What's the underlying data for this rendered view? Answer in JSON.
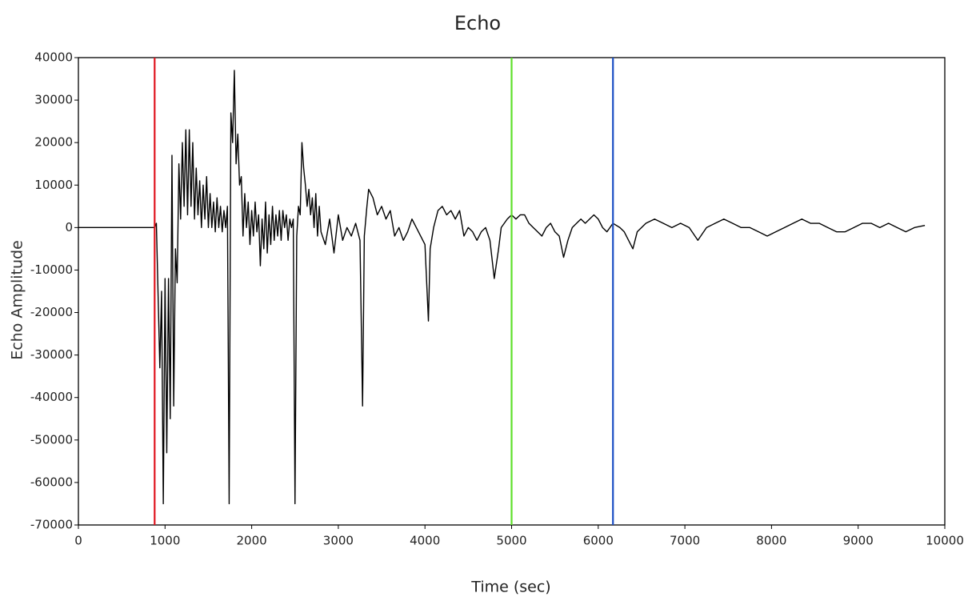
{
  "chart_data": {
    "type": "line",
    "title": "Echo",
    "x_label": "Time (sec)",
    "y_label": "Echo Amplitude",
    "color": "#000000",
    "x": [
      0,
      880,
      900,
      940,
      960,
      980,
      1000,
      1020,
      1040,
      1060,
      1080,
      1100,
      1120,
      1140,
      1160,
      1180,
      1200,
      1220,
      1240,
      1260,
      1280,
      1300,
      1320,
      1340,
      1360,
      1380,
      1400,
      1420,
      1440,
      1460,
      1480,
      1500,
      1520,
      1540,
      1560,
      1580,
      1600,
      1620,
      1640,
      1660,
      1680,
      1700,
      1720,
      1740,
      1760,
      1780,
      1800,
      1820,
      1840,
      1860,
      1880,
      1900,
      1920,
      1940,
      1960,
      1980,
      2000,
      2020,
      2040,
      2060,
      2080,
      2100,
      2120,
      2140,
      2160,
      2180,
      2200,
      2220,
      2240,
      2260,
      2280,
      2300,
      2320,
      2340,
      2360,
      2380,
      2400,
      2420,
      2440,
      2460,
      2480,
      2500,
      2520,
      2540,
      2560,
      2580,
      2600,
      2620,
      2640,
      2660,
      2680,
      2700,
      2720,
      2740,
      2760,
      2780,
      2800,
      2850,
      2900,
      2950,
      3000,
      3050,
      3100,
      3150,
      3200,
      3250,
      3280,
      3300,
      3330,
      3350,
      3400,
      3450,
      3500,
      3550,
      3600,
      3650,
      3700,
      3750,
      3800,
      3850,
      3900,
      3950,
      4000,
      4040,
      4060,
      4100,
      4150,
      4200,
      4250,
      4300,
      4350,
      4400,
      4450,
      4500,
      4550,
      4600,
      4650,
      4700,
      4750,
      4800,
      4850,
      4880,
      4950,
      5000,
      5050,
      5100,
      5150,
      5200,
      5250,
      5300,
      5350,
      5400,
      5450,
      5500,
      5550,
      5600,
      5650,
      5700,
      5750,
      5800,
      5850,
      5900,
      5950,
      6000,
      6050,
      6100,
      6170,
      6250,
      6300,
      6400,
      6450,
      6550,
      6650,
      6750,
      6850,
      6950,
      7050,
      7150,
      7250,
      7350,
      7450,
      7550,
      7650,
      7750,
      7850,
      7950,
      8050,
      8150,
      8250,
      8350,
      8450,
      8550,
      8650,
      8750,
      8850,
      8950,
      9050,
      9150,
      9250,
      9350,
      9450,
      9550,
      9650,
      9770
    ],
    "values": [
      0,
      0,
      1000,
      -33000,
      -15000,
      -65000,
      -12000,
      -53000,
      -12000,
      -45000,
      17000,
      -42000,
      -5000,
      -13000,
      15000,
      2000,
      20000,
      5000,
      23000,
      3000,
      23000,
      5000,
      20000,
      2000,
      14000,
      3000,
      11000,
      0,
      10000,
      2000,
      12000,
      0,
      8000,
      0,
      6000,
      -1000,
      7000,
      0,
      5000,
      -1000,
      4000,
      0,
      5000,
      -65000,
      27000,
      20000,
      37000,
      15000,
      22000,
      10000,
      12000,
      -2000,
      8000,
      0,
      6000,
      -4000,
      4000,
      -2000,
      6000,
      -1000,
      3000,
      -9000,
      2000,
      -5000,
      6000,
      -6000,
      3000,
      -4000,
      5000,
      -3000,
      3000,
      -2000,
      4000,
      -3000,
      4000,
      0,
      3000,
      -3000,
      2000,
      0,
      2000,
      -65000,
      -2000,
      5000,
      3000,
      20000,
      14000,
      10000,
      5000,
      9000,
      3000,
      7000,
      0,
      8000,
      -2000,
      5000,
      -1000,
      -4000,
      2000,
      -6000,
      3000,
      -3000,
      0,
      -2000,
      1000,
      -3000,
      -42000,
      -2000,
      5000,
      9000,
      7000,
      3000,
      5000,
      2000,
      4000,
      -2000,
      0,
      -3000,
      -1000,
      2000,
      0,
      -2000,
      -4000,
      -22000,
      -5000,
      0,
      4000,
      5000,
      3000,
      4000,
      2000,
      4000,
      -2000,
      0,
      -1000,
      -3000,
      -1000,
      0,
      -3000,
      -12000,
      -5000,
      0,
      2000,
      3000,
      2000,
      3000,
      3000,
      1000,
      0,
      -1000,
      -2000,
      0,
      1000,
      -1000,
      -2000,
      -7000,
      -3000,
      0,
      1000,
      2000,
      1000,
      2000,
      3000,
      2000,
      0,
      -1000,
      1000,
      0,
      -1000,
      -5000,
      -1000,
      1000,
      2000,
      1000,
      0,
      1000,
      0,
      -3000,
      0,
      1000,
      2000,
      1000,
      0,
      0,
      -1000,
      -2000,
      -1000,
      0,
      1000,
      2000,
      1000,
      1000,
      0,
      -1000,
      -1000,
      0,
      1000,
      1000,
      0,
      1000,
      0,
      -1000,
      0,
      500
    ],
    "cursors": [
      {
        "x": 880,
        "color": "#e0141e"
      },
      {
        "x": 5000,
        "color": "#5fe02a"
      },
      {
        "x": 6170,
        "color": "#1c4fc4"
      }
    ],
    "xlim": [
      0,
      10000
    ],
    "xticks": [
      0,
      1000,
      2000,
      3000,
      4000,
      5000,
      6000,
      7000,
      8000,
      9000,
      10000
    ],
    "ylim": [
      -70000,
      40000
    ],
    "yticks": [
      -70000,
      -60000,
      -50000,
      -40000,
      -30000,
      -20000,
      -10000,
      0,
      10000,
      20000,
      30000,
      40000
    ]
  }
}
